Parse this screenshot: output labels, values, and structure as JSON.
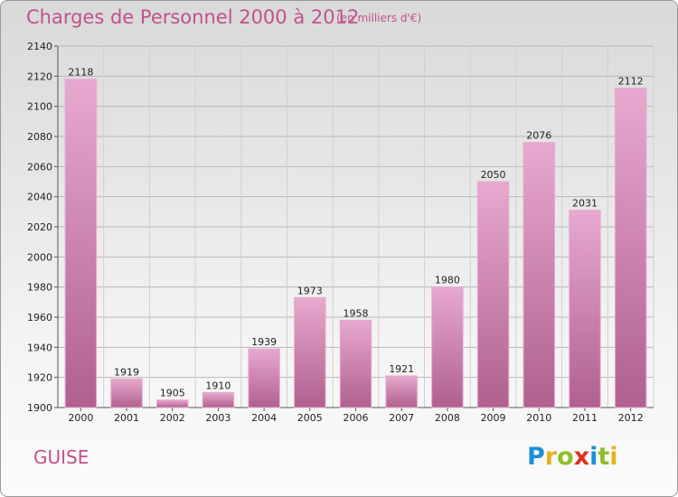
{
  "header": {
    "title": "Charges de Personnel 2000 à 2012",
    "subtitle": "(en milliers d'€)"
  },
  "commune": "GUISE",
  "logo": {
    "letters": [
      "P",
      "r",
      "o",
      "x",
      "i",
      "t",
      "i"
    ],
    "colors": [
      "#1e8fd6",
      "#e8b21c",
      "#8fbe2a",
      "#e0301e",
      "#1e8fd6",
      "#8fbe2a",
      "#e8b21c"
    ]
  },
  "colors": {
    "bar": "#cc7aa9",
    "bar_light": "#e7a9cf",
    "bar_dark": "#b0608e",
    "text_accent": "#c2518c"
  },
  "chart_data": {
    "type": "bar",
    "title": "Charges de Personnel 2000 à 2012",
    "subtitle": "(en milliers d'€)",
    "categories": [
      "2000",
      "2001",
      "2002",
      "2003",
      "2004",
      "2005",
      "2006",
      "2007",
      "2008",
      "2009",
      "2010",
      "2011",
      "2012"
    ],
    "values": [
      2118,
      1919,
      1905,
      1910,
      1939,
      1973,
      1958,
      1921,
      1980,
      2050,
      2076,
      2031,
      2112
    ],
    "ylim": [
      1900,
      2140
    ],
    "yticks": [
      1900,
      1920,
      1940,
      1960,
      1980,
      2000,
      2020,
      2040,
      2060,
      2080,
      2100,
      2120,
      2140
    ],
    "grid": true,
    "xlabel": "",
    "ylabel": ""
  }
}
